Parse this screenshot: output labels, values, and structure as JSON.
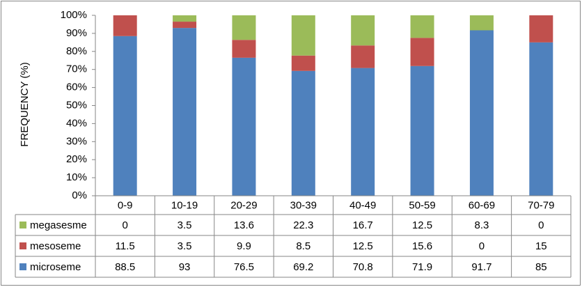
{
  "chart_data": {
    "type": "stacked-bar",
    "y_label": "FREQUENCY (%)",
    "categories": [
      "0-9",
      "10-19",
      "20-29",
      "30-39",
      "40-49",
      "50-59",
      "60-69",
      "70-79"
    ],
    "series": [
      {
        "name": "microseme",
        "color": "#4f81bd",
        "values": [
          88.5,
          93,
          76.5,
          69.2,
          70.8,
          71.9,
          91.7,
          85
        ]
      },
      {
        "name": "mesoseme",
        "color": "#c0504d",
        "values": [
          11.5,
          3.5,
          9.9,
          8.5,
          12.5,
          15.6,
          0,
          15
        ]
      },
      {
        "name": "megasesme",
        "color": "#9bbb59",
        "values": [
          0,
          3.5,
          13.6,
          22.3,
          16.7,
          12.5,
          8.3,
          0
        ]
      }
    ],
    "ylim": [
      0,
      100
    ],
    "yticks": [
      {
        "value": 0,
        "label": "0%"
      },
      {
        "value": 10,
        "label": "10%"
      },
      {
        "value": 20,
        "label": "20%"
      },
      {
        "value": 30,
        "label": "30%"
      },
      {
        "value": 40,
        "label": "40%"
      },
      {
        "value": 50,
        "label": "50%"
      },
      {
        "value": 60,
        "label": "60%"
      },
      {
        "value": 70,
        "label": "70%"
      },
      {
        "value": 80,
        "label": "80%"
      },
      {
        "value": 90,
        "label": "90%"
      },
      {
        "value": 100,
        "label": "100%"
      }
    ],
    "grid": false
  }
}
